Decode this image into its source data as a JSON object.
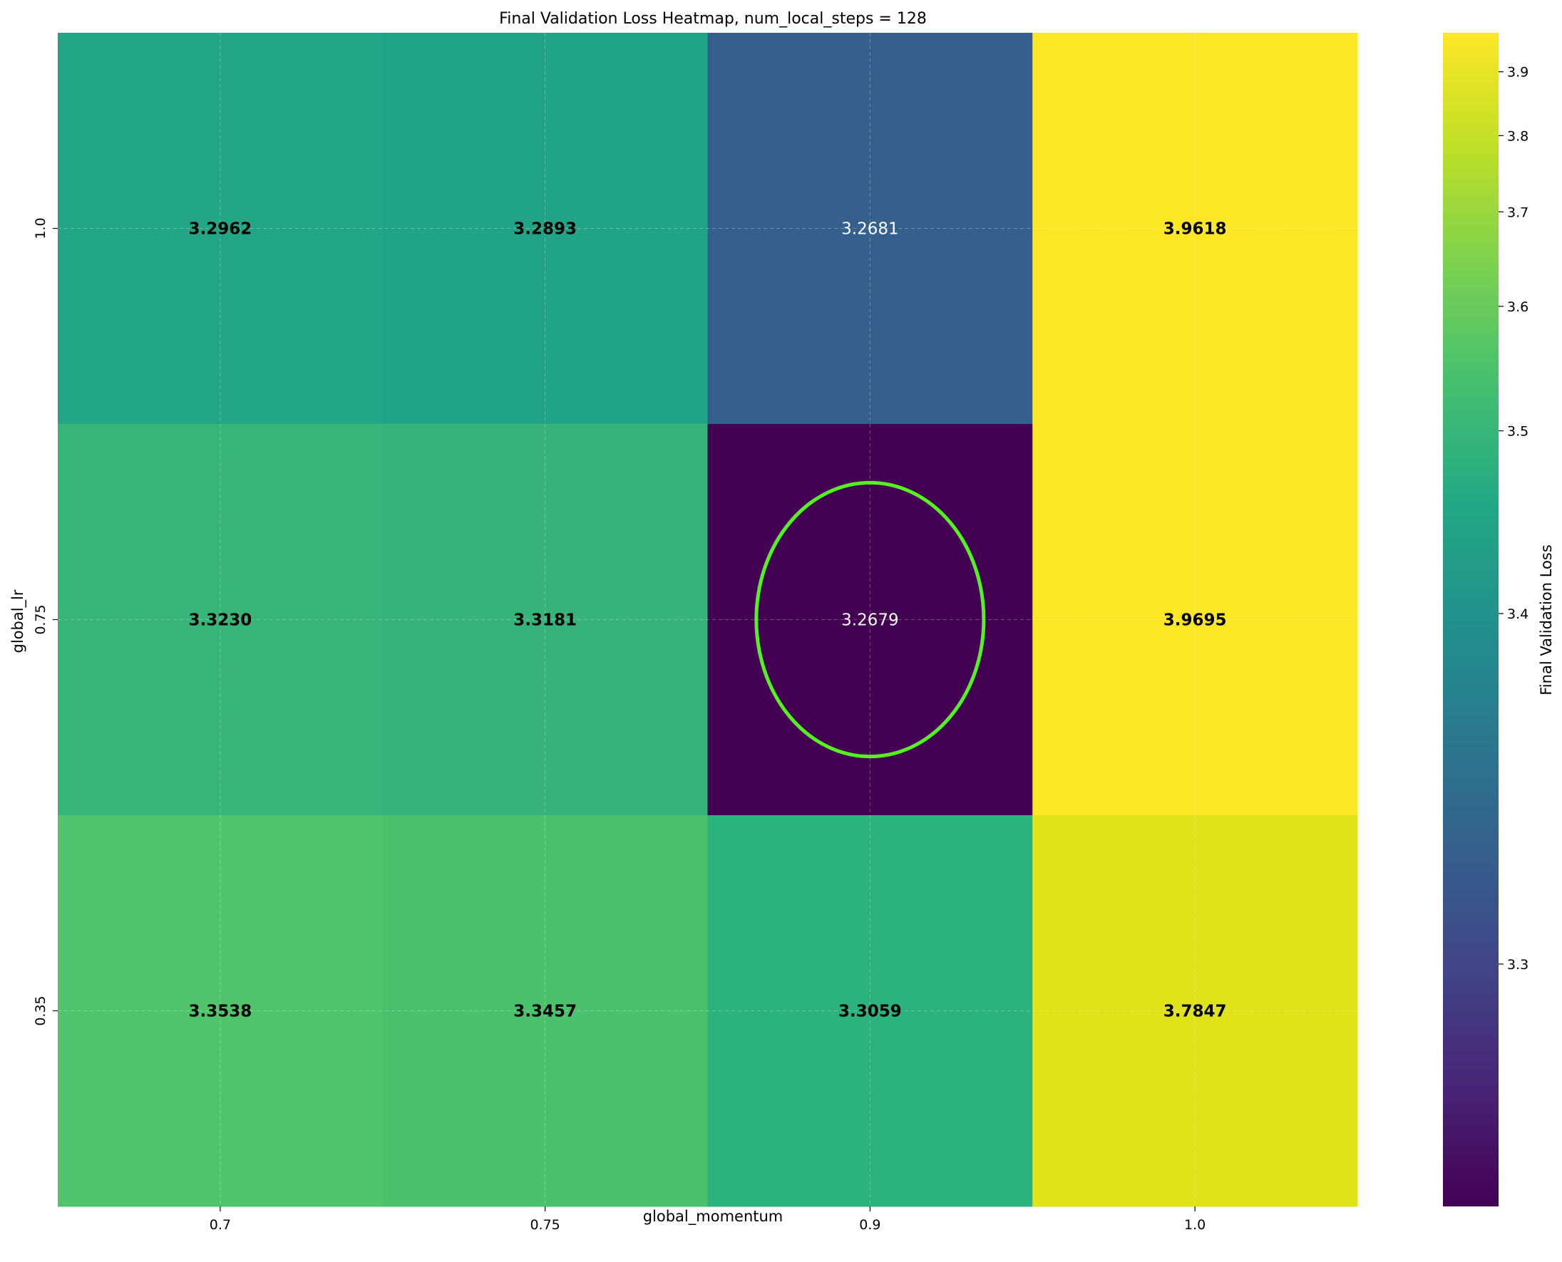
{
  "chart_data": {
    "type": "heatmap",
    "title": "Final Validation Loss Heatmap, num_local_steps = 128",
    "xlabel": "global_momentum",
    "ylabel": "global_lr",
    "x_categories": [
      "0.7",
      "0.75",
      "0.9",
      "1.0"
    ],
    "y_categories": [
      "1.0",
      "0.75",
      "0.35"
    ],
    "values": [
      [
        3.2962,
        3.2893,
        3.2681,
        3.9618
      ],
      [
        3.323,
        3.3181,
        3.2679,
        3.9695
      ],
      [
        3.3538,
        3.3457,
        3.3059,
        3.7847
      ]
    ],
    "value_labels": [
      [
        "3.2962",
        "3.2893",
        "3.2681",
        "3.9618"
      ],
      [
        "3.3230",
        "3.3181",
        "3.2679",
        "3.9695"
      ],
      [
        "3.3538",
        "3.3457",
        "3.3059",
        "3.7847"
      ]
    ],
    "highlight": {
      "row": 1,
      "col": 2,
      "color": "#54f21e"
    },
    "colorbar": {
      "label": "Final Validation Loss",
      "colormap": "viridis",
      "scale": "log-like (vmin ≈ 3.2679, vmax ≈ 3.9695)",
      "range": [
        3.2679,
        3.9695
      ],
      "ticks": [
        "3.3",
        "3.4",
        "3.5",
        "3.6",
        "3.7",
        "3.8",
        "3.9"
      ]
    },
    "grid": true,
    "cell_colors": [
      [
        "#22a685",
        "#21a386",
        "#35608d",
        "#fde725"
      ],
      [
        "#37b578",
        "#36b37a",
        "#440154",
        "#fde725"
      ],
      [
        "#4fc46a",
        "#4ac16d",
        "#2cb27d",
        "#e0e318"
      ]
    ]
  }
}
